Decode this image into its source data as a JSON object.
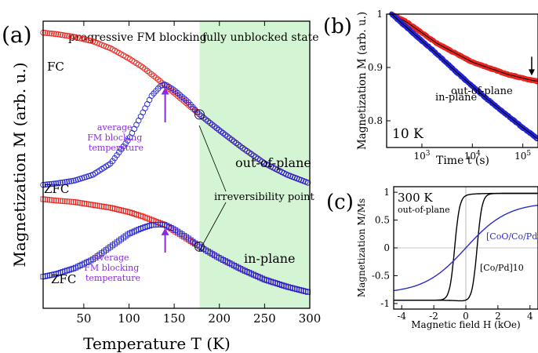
{
  "chart_data": [
    {
      "panel_label": "(a)",
      "type": "scatter",
      "xlabel": "Temperature T (K)",
      "ylabel": "Magnetization M (arb. u.)",
      "xlim": [
        5,
        300
      ],
      "x_ticks": [
        50,
        100,
        150,
        200,
        250,
        300
      ],
      "region_labels": [
        "progressive FM blocking",
        "fully unblocked state"
      ],
      "shaded_region": {
        "x_from": 178,
        "x_to": 300,
        "color": "#d4f5d4"
      },
      "markers": {
        "circle": "out-of-plane",
        "square": "in-plane"
      },
      "colors": {
        "FC": "#e8251f",
        "ZFC": "#2323d6"
      },
      "x": [
        5,
        20,
        40,
        60,
        80,
        100,
        115,
        125,
        135,
        140,
        150,
        165,
        178,
        200,
        225,
        250,
        275,
        300
      ],
      "series": [
        {
          "name": "FC",
          "group": "out-of-plane",
          "values": [
            0.96,
            0.955,
            0.945,
            0.93,
            0.905,
            0.87,
            0.84,
            0.815,
            0.79,
            0.775,
            0.75,
            0.71,
            0.675,
            0.62,
            0.56,
            0.505,
            0.465,
            0.435
          ]
        },
        {
          "name": "ZFC",
          "group": "out-of-plane",
          "values": [
            0.43,
            0.435,
            0.445,
            0.465,
            0.505,
            0.59,
            0.68,
            0.74,
            0.775,
            0.78,
            0.76,
            0.72,
            0.675,
            0.62,
            0.56,
            0.505,
            0.465,
            0.435
          ]
        },
        {
          "name": "FC",
          "group": "in-plane",
          "values": [
            0.38,
            0.375,
            0.37,
            0.36,
            0.35,
            0.335,
            0.32,
            0.308,
            0.296,
            0.29,
            0.27,
            0.24,
            0.215,
            0.175,
            0.135,
            0.1,
            0.075,
            0.055
          ]
        },
        {
          "name": "ZFC",
          "group": "in-plane",
          "values": [
            0.11,
            0.12,
            0.14,
            0.17,
            0.215,
            0.26,
            0.28,
            0.29,
            0.292,
            0.29,
            0.275,
            0.245,
            0.215,
            0.175,
            0.135,
            0.1,
            0.075,
            0.055
          ]
        }
      ],
      "annotations": {
        "fc": "FC",
        "zfc_oop": "ZFC",
        "zfc_ip": "ZFC",
        "oop": "out-of-plane",
        "ip": "in-plane",
        "irrev": "irreversibility point",
        "blocking_oop": [
          "average",
          "FM blocking",
          "temperature"
        ],
        "blocking_ip": [
          "average",
          "FM blocking",
          "temperature"
        ]
      },
      "irreversibility_T": 178,
      "blocking_T": 140
    },
    {
      "panel_label": "(b)",
      "type": "scatter",
      "xlabel": "Time t (s)",
      "ylabel": "Magnetization M (arb. u.)",
      "xscale": "log",
      "xlim": [
        200,
        200000
      ],
      "ylim": [
        0.75,
        1.0
      ],
      "x_ticks": [
        "10^3",
        "10^4",
        "10^5"
      ],
      "y_ticks": [
        0.8,
        0.9,
        1
      ],
      "temperature_label": "10 K",
      "x": [
        250,
        500,
        1000,
        2000,
        5000,
        10000,
        20000,
        50000,
        100000,
        150000,
        200000
      ],
      "series": [
        {
          "name": "out-of-plane",
          "color": "#e8251f",
          "values": [
            1.0,
            0.985,
            0.965,
            0.945,
            0.925,
            0.91,
            0.9,
            0.887,
            0.88,
            0.876,
            0.874
          ]
        },
        {
          "name": "in-plane",
          "color": "#2323d6",
          "values": [
            1.0,
            0.975,
            0.95,
            0.925,
            0.89,
            0.865,
            0.84,
            0.81,
            0.787,
            0.775,
            0.765
          ]
        }
      ],
      "arrow_at_x": 150000
    },
    {
      "panel_label": "(c)",
      "type": "line",
      "xlabel": "Magnetic field H (kOe)",
      "ylabel": "Magnetization M/Ms",
      "xlim": [
        -4.5,
        4.5
      ],
      "ylim": [
        -1.1,
        1.1
      ],
      "x_ticks": [
        -4,
        -2,
        0,
        2,
        4
      ],
      "y_ticks": [
        -1,
        -0.5,
        0,
        0.5,
        1
      ],
      "temperature_label": "300 K",
      "orientation_label": "out-of-plane",
      "series": [
        {
          "name": "[Co/Pd]10",
          "color": "#000000",
          "coercive_field": 0.7
        },
        {
          "name": "[CoO/Co/Pd]10",
          "color": "#2a2ad0",
          "slope_note": "no hysteresis"
        }
      ],
      "legend_text": {
        "black": "[Co/Pd]10",
        "blue": "[CoO/Co/Pd]10"
      }
    }
  ]
}
